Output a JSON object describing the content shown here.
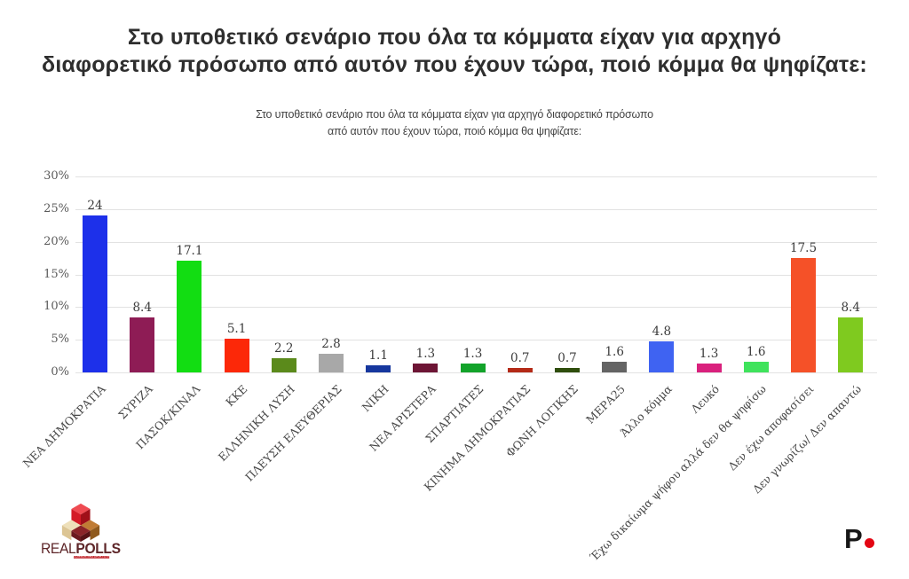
{
  "chart_data": {
    "type": "bar",
    "title": "Στο υποθετικό σενάριο που όλα τα κόμματα είχαν για αρχηγό\nδιαφορετικό πρόσωπο από αυτόν που έχουν τώρα, ποιό κόμμα θα ψηφίζατε:",
    "subtitle": "Στο υποθετικό σενάριο που όλα τα κόμματα είχαν για αρχηγό διαφορετικό πρόσωπο\nαπό αυτόν που έχουν τώρα, ποιό κόμμα θα ψηφίζατε:",
    "categories": [
      "ΝΕΑ ΔΗΜΟΚΡΑΤΙΑ",
      "ΣΥΡΙΖΑ",
      "ΠΑΣΟΚ/ΚΙΝΑΛ",
      "ΚΚΕ",
      "ΕΛΛΗΝΙΚΗ ΛΥΣΗ",
      "ΠΛΕΥΣΗ ΕΛΕΥΘΕΡΙΑΣ",
      "ΝΙΚΗ",
      "ΝΕΑ ΑΡΙΣΤΕΡΑ",
      "ΣΠΑΡΤΙΑΤΕΣ",
      "ΚΙΝΗΜΑ ΔΗΜΟΚΡΑΤΙΑΣ",
      "ΦΩΝΗ ΛΟΓΙΚΗΣ",
      "ΜΕΡΑ25",
      "Άλλο κόμμα",
      "Λευκό",
      "Έχω δικαίωμα ψήφου αλλά δεν θα ψηφίσω",
      "Δεν έχω αποφασίσει",
      "Δεν γνωρίζω/ Δεν απαντώ"
    ],
    "values": [
      24,
      8.4,
      17.1,
      5.1,
      2.2,
      2.8,
      1.1,
      1.3,
      1.3,
      0.7,
      0.7,
      1.6,
      4.8,
      1.3,
      1.6,
      17.5,
      8.4
    ],
    "value_labels": [
      "24",
      "8.4",
      "17.1",
      "5.1",
      "2.2",
      "2.8",
      "1.1",
      "1.3",
      "1.3",
      "0.7",
      "0.7",
      "1.6",
      "4.8",
      "1.3",
      "1.6",
      "17.5",
      "8.4"
    ],
    "bar_colors": [
      "#1d30ea",
      "#8e1c55",
      "#12dd12",
      "#fc2808",
      "#5b8a1b",
      "#a8a8a8",
      "#16379e",
      "#6d1535",
      "#12a32a",
      "#b42a17",
      "#2f4e0d",
      "#646464",
      "#3f63f2",
      "#d9217d",
      "#3fe35c",
      "#f55128",
      "#7fca1f"
    ],
    "y_ticks": [
      0,
      5,
      10,
      15,
      20,
      25,
      30
    ],
    "y_tick_labels": [
      "0%",
      "5%",
      "10%",
      "15%",
      "20%",
      "25%",
      "30%"
    ],
    "ylim": [
      0,
      30
    ],
    "grid": true,
    "legend": "none",
    "xlabel": "",
    "ylabel": ""
  },
  "footer": {
    "realpolls": {
      "name_regular": "REAL",
      "name_bold": "POLLS",
      "tagline": "CONVERTING DATA TO INSIGHT"
    },
    "brand_p": {
      "letter": "P"
    }
  },
  "colors": {
    "grid_line": "#e2e2e2",
    "brand_dot_red": "#e30613",
    "logo_maroon": "#5e2629",
    "tagline_banner_red": "#c1272d"
  }
}
